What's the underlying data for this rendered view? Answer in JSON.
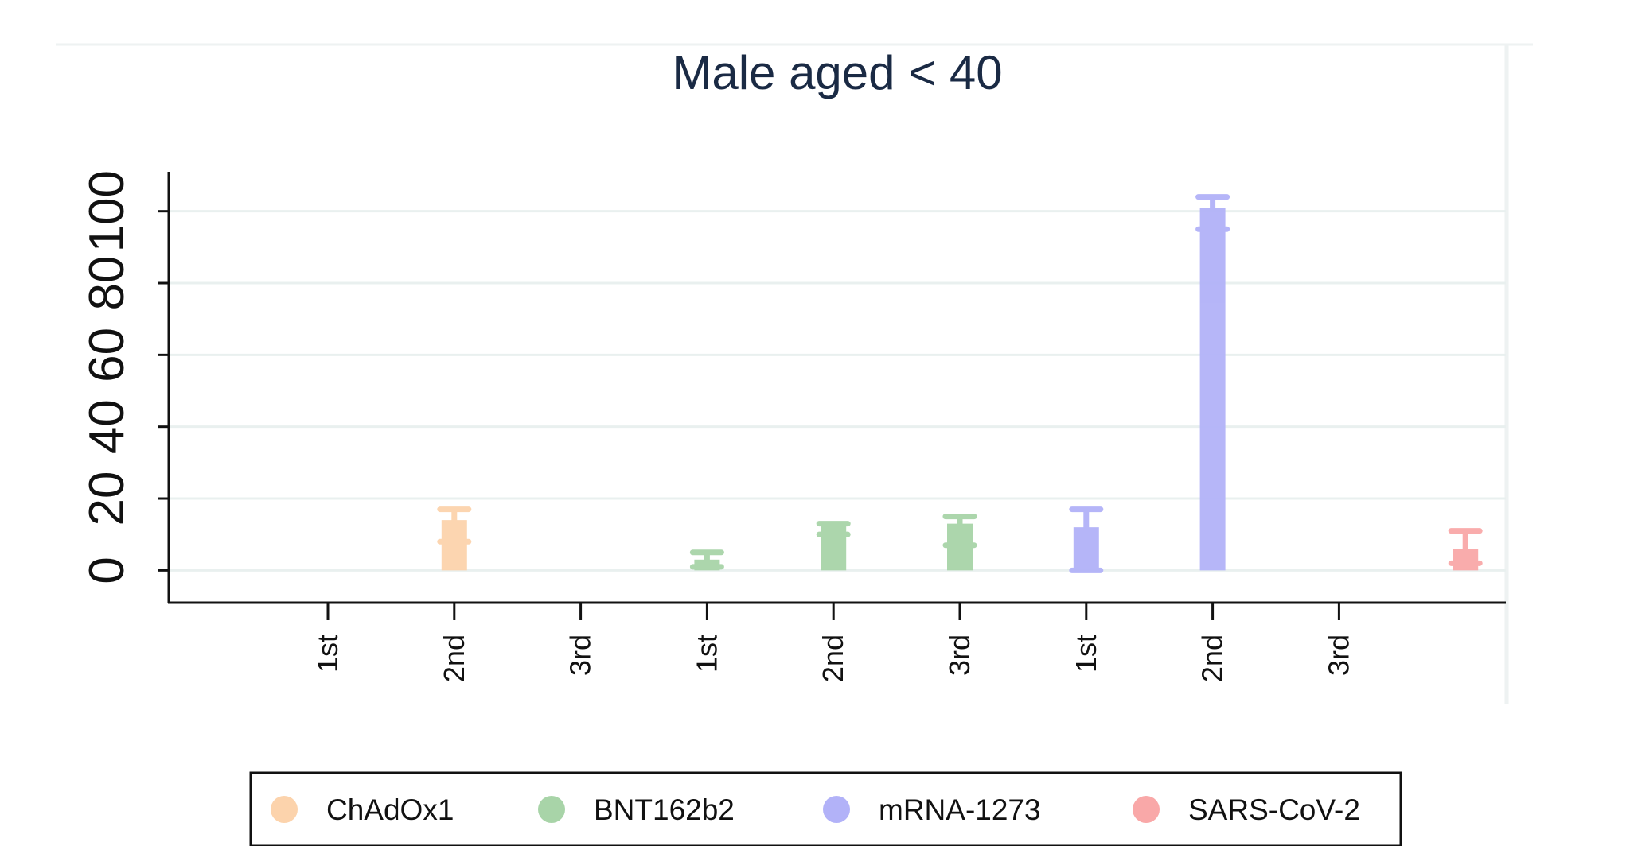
{
  "chart_data": {
    "type": "bar",
    "title": "Male aged < 40",
    "xlabel": "",
    "ylabel": "",
    "ylim": [
      -9,
      111
    ],
    "yticks": [
      0,
      20,
      40,
      60,
      80,
      100
    ],
    "ytick_labels": [
      "0",
      "20",
      "40",
      "60",
      "80",
      "100"
    ],
    "grid": true,
    "legend_position": "bottom",
    "categories": [
      "1st",
      "2nd",
      "3rd",
      "1st",
      "2nd",
      "3rd",
      "1st",
      "2nd",
      "3rd",
      ""
    ],
    "series": [
      {
        "name": "ChAdOx1",
        "color": "#fcd3ac",
        "points": [
          {
            "category_index": 1,
            "value": 14,
            "lower": 8,
            "upper": 17
          }
        ]
      },
      {
        "name": "BNT162b2",
        "color": "#a8d4a8",
        "points": [
          {
            "category_index": 3,
            "value": 3,
            "lower": 1,
            "upper": 5
          },
          {
            "category_index": 4,
            "value": 13,
            "lower": 10,
            "upper": 13
          },
          {
            "category_index": 5,
            "value": 13,
            "lower": 7,
            "upper": 15
          }
        ]
      },
      {
        "name": "mRNA-1273",
        "color": "#b2b2f8",
        "points": [
          {
            "category_index": 6,
            "value": 12,
            "lower": 0,
            "upper": 17
          },
          {
            "category_index": 7,
            "value": 101,
            "lower": 95,
            "upper": 104
          }
        ]
      },
      {
        "name": "SARS-CoV-2",
        "color": "#f9a8a8",
        "points": [
          {
            "category_index": 9,
            "value": 6,
            "lower": 2,
            "upper": 11
          }
        ]
      }
    ]
  }
}
